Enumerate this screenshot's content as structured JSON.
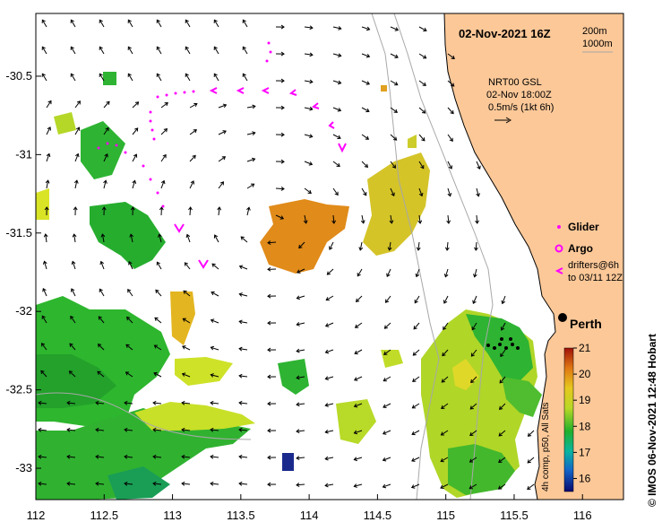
{
  "title": "02-Nov-2021 16Z",
  "isobaths": [
    "200m",
    "1000m"
  ],
  "current_info": {
    "product": "NRT00 GSL",
    "time": "02-Nov 18:00Z",
    "scale": "0.5m/s (1kt 6h)"
  },
  "legend": {
    "glider": "Glider",
    "argo": "Argo",
    "drifters_line1": "drifters@6h",
    "drifters_line2": "to 03/11 12Z"
  },
  "city": "Perth",
  "colorbar": {
    "label": "4h comp, p50, All Sats",
    "ticks": [
      "21",
      "20",
      "19",
      "18",
      "17",
      "16"
    ],
    "min": 15.5,
    "max": 21
  },
  "credit": "© IMOS 06-Nov-2021 12:48 Hobart",
  "axes": {
    "lon_ticks": [
      "112",
      "112.5",
      "113",
      "113.5",
      "114",
      "114.5",
      "115",
      "115.5",
      "116"
    ],
    "lat_ticks": [
      "-30.5",
      "-31",
      "-31.5",
      "-32",
      "-32.5",
      "-33"
    ],
    "lon_range": [
      112,
      116.3
    ],
    "lat_range": [
      -33.2,
      -30.1
    ]
  },
  "colors": {
    "land": "#fcc898",
    "glider": "#ff00ff",
    "coast_line": "#000000",
    "isobath": "#a8a8a8"
  }
}
